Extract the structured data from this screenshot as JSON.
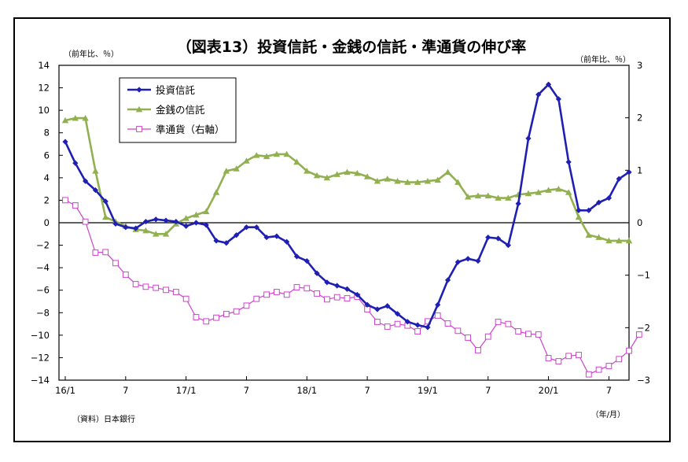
{
  "chart_data": {
    "type": "line",
    "title": "（図表13）投資信託・金銭の信託・準通貨の伸び率",
    "left_unit": "（前年比、％）",
    "right_unit": "（前年比、％）",
    "x_unit": "（年/月）",
    "source": "（資料）日本銀行",
    "x_tick_labels": [
      "16/1",
      "7",
      "17/1",
      "7",
      "18/1",
      "7",
      "19/1",
      "7",
      "20/1",
      "7"
    ],
    "y_left": {
      "ylim": [
        -14,
        14
      ],
      "ticks": [
        "14",
        "12",
        "10",
        "8",
        "6",
        "4",
        "2",
        "0",
        "−2",
        "−4",
        "−6",
        "−8",
        "−10",
        "−12",
        "−14"
      ]
    },
    "y_right": {
      "ylim": [
        -3,
        3
      ],
      "ticks": [
        "3",
        "2",
        "1",
        "0",
        "−1",
        "−2",
        "−3"
      ]
    },
    "series": [
      {
        "name": "投資信託",
        "axis": "left",
        "color": "#1f1fb4",
        "marker": "diamond",
        "values": [
          7.2,
          5.3,
          3.7,
          2.9,
          1.9,
          -0.1,
          -0.4,
          -0.5,
          0.1,
          0.3,
          0.2,
          0.1,
          -0.3,
          0.0,
          -0.2,
          -1.6,
          -1.8,
          -1.1,
          -0.4,
          -0.4,
          -1.3,
          -1.2,
          -1.7,
          -3.0,
          -3.4,
          -4.5,
          -5.3,
          -5.6,
          -5.9,
          -6.4,
          -7.3,
          -7.7,
          -7.4,
          -8.1,
          -8.8,
          -9.1,
          -9.3,
          -7.3,
          -5.1,
          -3.5,
          -3.2,
          -3.4,
          -1.3,
          -1.4,
          -2.0,
          1.7,
          7.5,
          11.4,
          12.3,
          11.0,
          5.4,
          1.1,
          1.1,
          1.8,
          2.2,
          3.9,
          4.5
        ]
      },
      {
        "name": "金銭の信託",
        "axis": "left",
        "color": "#92b050",
        "marker": "triangle",
        "values": [
          9.1,
          9.3,
          9.3,
          4.6,
          0.5,
          0.1,
          -0.3,
          -0.6,
          -0.7,
          -1.0,
          -1.0,
          -0.1,
          0.4,
          0.7,
          1.0,
          2.7,
          4.6,
          4.8,
          5.5,
          6.0,
          5.9,
          6.1,
          6.1,
          5.4,
          4.6,
          4.2,
          4.0,
          4.3,
          4.5,
          4.4,
          4.1,
          3.7,
          3.9,
          3.7,
          3.6,
          3.6,
          3.7,
          3.8,
          4.5,
          3.6,
          2.3,
          2.4,
          2.4,
          2.2,
          2.2,
          2.5,
          2.6,
          2.7,
          2.9,
          3.0,
          2.7,
          0.5,
          -1.1,
          -1.3,
          -1.6,
          -1.6,
          -1.6
        ]
      },
      {
        "name": "準通貨（右軸）",
        "axis": "right",
        "color": "#cc44cc",
        "marker": "square",
        "values": [
          0.43,
          0.33,
          0.02,
          -0.57,
          -0.56,
          -0.77,
          -0.99,
          -1.17,
          -1.22,
          -1.24,
          -1.28,
          -1.32,
          -1.45,
          -1.8,
          -1.88,
          -1.81,
          -1.74,
          -1.69,
          -1.58,
          -1.45,
          -1.37,
          -1.32,
          -1.37,
          -1.23,
          -1.25,
          -1.35,
          -1.46,
          -1.42,
          -1.44,
          -1.41,
          -1.65,
          -1.89,
          -1.98,
          -1.93,
          -1.96,
          -2.07,
          -1.88,
          -1.77,
          -1.92,
          -2.06,
          -2.19,
          -2.43,
          -2.17,
          -1.89,
          -1.93,
          -2.07,
          -2.12,
          -2.13,
          -2.58,
          -2.64,
          -2.54,
          -2.52,
          -2.89,
          -2.8,
          -2.73,
          -2.6,
          -2.44,
          -2.13
        ]
      }
    ],
    "legend_position": "top-left (inside plot)",
    "grid": false
  }
}
